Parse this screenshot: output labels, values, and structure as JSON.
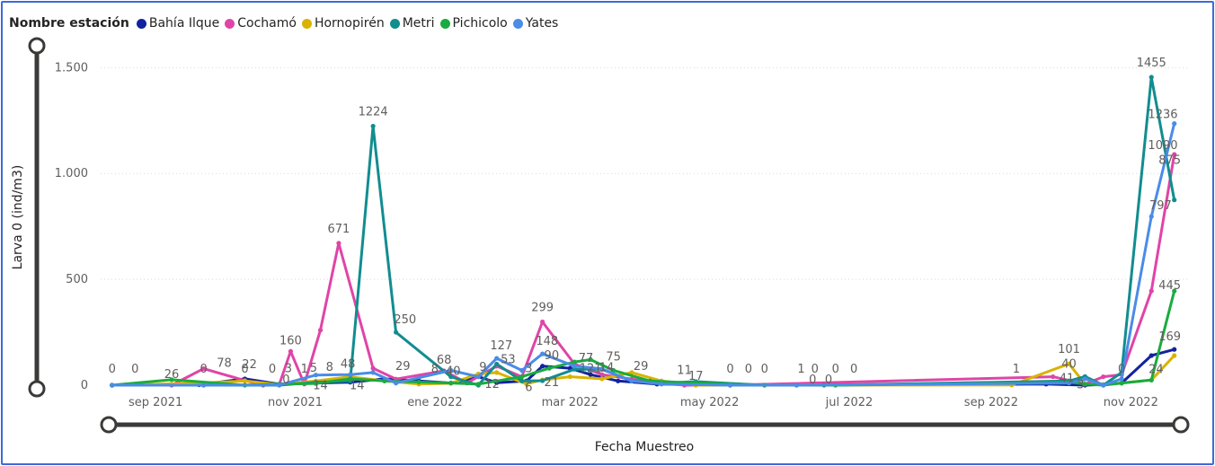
{
  "chart_data": {
    "type": "line",
    "legend_title": "Nombre estación",
    "xlabel": "Fecha Muestreo",
    "ylabel": "Larva 0 (ind/m3)",
    "ylim": [
      0,
      1650
    ],
    "x_range": [
      "2021-08-08",
      "2022-11-26"
    ],
    "y_ticks": [
      {
        "value": 0,
        "label": "0"
      },
      {
        "value": 500,
        "label": "500"
      },
      {
        "value": 1000,
        "label": "1.000"
      },
      {
        "value": 1500,
        "label": "1.500"
      }
    ],
    "x_ticks": [
      {
        "date": "2021-09-01",
        "label": "sep 2021"
      },
      {
        "date": "2021-11-01",
        "label": "nov 2021"
      },
      {
        "date": "2022-01-01",
        "label": "ene 2022"
      },
      {
        "date": "2022-03-01",
        "label": "mar 2022"
      },
      {
        "date": "2022-05-01",
        "label": "may 2022"
      },
      {
        "date": "2022-07-01",
        "label": "jul 2022"
      },
      {
        "date": "2022-09-01",
        "label": "sep 2022"
      },
      {
        "date": "2022-11-01",
        "label": "nov 2022"
      }
    ],
    "grid": true,
    "legend_position": "top-left",
    "series": [
      {
        "name": "Bahía Ilque",
        "color": "#12239e",
        "points": [
          [
            "2021-08-13",
            0
          ],
          [
            "2021-09-20",
            2
          ],
          [
            "2021-10-10",
            30
          ],
          [
            "2021-10-25",
            5
          ],
          [
            "2021-11-10",
            10
          ],
          [
            "2021-11-25",
            14
          ],
          [
            "2021-12-10",
            30
          ],
          [
            "2021-12-25",
            20
          ],
          [
            "2022-01-08",
            10
          ],
          [
            "2022-01-20",
            40
          ],
          [
            "2022-01-28",
            12
          ],
          [
            "2022-02-10",
            20
          ],
          [
            "2022-02-17",
            90
          ],
          [
            "2022-03-01",
            80
          ],
          [
            "2022-03-10",
            50
          ],
          [
            "2022-03-22",
            20
          ],
          [
            "2022-04-08",
            5
          ],
          [
            "2022-04-25",
            2
          ],
          [
            "2022-05-10",
            0
          ],
          [
            "2022-06-08",
            0
          ],
          [
            "2022-09-25",
            5
          ],
          [
            "2022-10-12",
            0
          ],
          [
            "2022-10-20",
            3
          ],
          [
            "2022-10-28",
            10
          ],
          [
            "2022-11-10",
            140
          ],
          [
            "2022-11-20",
            169
          ]
        ]
      },
      {
        "name": "Cochamó",
        "color": "#e044a7",
        "points": [
          [
            "2021-08-13",
            0
          ],
          [
            "2021-09-08",
            0
          ],
          [
            "2021-09-22",
            78
          ],
          [
            "2021-10-10",
            22
          ],
          [
            "2021-10-18",
            0
          ],
          [
            "2021-10-25",
            3
          ],
          [
            "2021-10-30",
            160
          ],
          [
            "2021-11-05",
            5
          ],
          [
            "2021-11-12",
            260
          ],
          [
            "2021-11-20",
            671
          ],
          [
            "2021-12-05",
            80
          ],
          [
            "2021-12-15",
            29
          ],
          [
            "2022-01-05",
            68
          ],
          [
            "2022-01-15",
            10
          ],
          [
            "2022-01-28",
            90
          ],
          [
            "2022-02-08",
            40
          ],
          [
            "2022-02-17",
            299
          ],
          [
            "2022-03-03",
            100
          ],
          [
            "2022-03-15",
            50
          ],
          [
            "2022-03-28",
            29
          ],
          [
            "2022-04-10",
            11
          ],
          [
            "2022-04-20",
            0
          ],
          [
            "2022-05-10",
            0
          ],
          [
            "2022-09-28",
            40
          ],
          [
            "2022-10-12",
            5
          ],
          [
            "2022-10-20",
            40
          ],
          [
            "2022-10-28",
            50
          ],
          [
            "2022-11-10",
            445
          ],
          [
            "2022-11-20",
            1090
          ]
        ]
      },
      {
        "name": "Hornopirén",
        "color": "#d9b300",
        "points": [
          [
            "2021-08-13",
            0
          ],
          [
            "2021-09-20",
            10
          ],
          [
            "2021-10-10",
            20
          ],
          [
            "2021-10-25",
            3
          ],
          [
            "2021-11-10",
            20
          ],
          [
            "2021-11-25",
            40
          ],
          [
            "2021-12-10",
            20
          ],
          [
            "2021-12-25",
            5
          ],
          [
            "2022-01-08",
            9
          ],
          [
            "2022-01-20",
            53
          ],
          [
            "2022-01-28",
            60
          ],
          [
            "2022-02-10",
            6
          ],
          [
            "2022-02-17",
            25
          ],
          [
            "2022-03-01",
            40
          ],
          [
            "2022-03-15",
            30
          ],
          [
            "2022-03-28",
            60
          ],
          [
            "2022-04-10",
            20
          ],
          [
            "2022-04-25",
            0
          ],
          [
            "2022-09-10",
            1
          ],
          [
            "2022-10-05",
            101
          ],
          [
            "2022-10-12",
            5
          ],
          [
            "2022-10-20",
            2
          ],
          [
            "2022-10-28",
            10
          ],
          [
            "2022-11-10",
            24
          ],
          [
            "2022-11-20",
            140
          ]
        ]
      },
      {
        "name": "Metri",
        "color": "#118d8f",
        "points": [
          [
            "2021-08-13",
            0
          ],
          [
            "2021-09-22",
            0
          ],
          [
            "2021-10-25",
            0
          ],
          [
            "2021-11-10",
            14
          ],
          [
            "2021-11-25",
            20
          ],
          [
            "2021-12-05",
            1224
          ],
          [
            "2021-12-15",
            250
          ],
          [
            "2022-01-08",
            40
          ],
          [
            "2022-01-20",
            0
          ],
          [
            "2022-01-28",
            100
          ],
          [
            "2022-02-08",
            20
          ],
          [
            "2022-02-17",
            21
          ],
          [
            "2022-03-03",
            75
          ],
          [
            "2022-03-15",
            75
          ],
          [
            "2022-03-28",
            20
          ],
          [
            "2022-04-10",
            10
          ],
          [
            "2022-04-25",
            17
          ],
          [
            "2022-05-25",
            0
          ],
          [
            "2022-06-20",
            0
          ],
          [
            "2022-10-05",
            20
          ],
          [
            "2022-10-12",
            41
          ],
          [
            "2022-10-20",
            0
          ],
          [
            "2022-10-28",
            60
          ],
          [
            "2022-11-10",
            1455
          ],
          [
            "2022-11-20",
            875
          ]
        ]
      },
      {
        "name": "Pichicolo",
        "color": "#1aab40",
        "points": [
          [
            "2021-08-13",
            0
          ],
          [
            "2021-09-08",
            26
          ],
          [
            "2021-10-10",
            0
          ],
          [
            "2021-10-25",
            5
          ],
          [
            "2021-11-10",
            8
          ],
          [
            "2021-11-25",
            30
          ],
          [
            "2021-12-10",
            20
          ],
          [
            "2021-12-25",
            15
          ],
          [
            "2022-01-08",
            10
          ],
          [
            "2022-01-20",
            5
          ],
          [
            "2022-02-08",
            40
          ],
          [
            "2022-02-20",
            80
          ],
          [
            "2022-03-03",
            110
          ],
          [
            "2022-03-10",
            121
          ],
          [
            "2022-03-20",
            70
          ],
          [
            "2022-04-05",
            20
          ],
          [
            "2022-04-25",
            10
          ],
          [
            "2022-05-25",
            0
          ],
          [
            "2022-06-25",
            0
          ],
          [
            "2022-10-05",
            15
          ],
          [
            "2022-10-12",
            5
          ],
          [
            "2022-10-20",
            0
          ],
          [
            "2022-10-28",
            10
          ],
          [
            "2022-11-10",
            24
          ],
          [
            "2022-11-20",
            445
          ]
        ]
      },
      {
        "name": "Yates",
        "color": "#4a8ce8",
        "points": [
          [
            "2021-08-13",
            0
          ],
          [
            "2021-09-22",
            0
          ],
          [
            "2021-10-25",
            1
          ],
          [
            "2021-11-10",
            48
          ],
          [
            "2021-11-25",
            50
          ],
          [
            "2021-12-05",
            60
          ],
          [
            "2021-12-15",
            10
          ],
          [
            "2022-01-08",
            70
          ],
          [
            "2022-01-20",
            40
          ],
          [
            "2022-01-28",
            127
          ],
          [
            "2022-02-08",
            70
          ],
          [
            "2022-02-17",
            148
          ],
          [
            "2022-03-03",
            90
          ],
          [
            "2022-03-15",
            77
          ],
          [
            "2022-03-28",
            20
          ],
          [
            "2022-04-10",
            5
          ],
          [
            "2022-05-10",
            0
          ],
          [
            "2022-06-08",
            0
          ],
          [
            "2022-10-05",
            10
          ],
          [
            "2022-10-12",
            30
          ],
          [
            "2022-10-20",
            0
          ],
          [
            "2022-10-28",
            30
          ],
          [
            "2022-11-10",
            797
          ],
          [
            "2022-11-20",
            1236
          ]
        ]
      }
    ],
    "data_labels": [
      {
        "date": "2021-08-13",
        "value": 0,
        "text": "0",
        "dy": -14
      },
      {
        "date": "2021-08-23",
        "value": 0,
        "text": "0",
        "dy": -14
      },
      {
        "date": "2021-09-08",
        "value": 26,
        "text": "26",
        "dy": -2
      },
      {
        "date": "2021-09-22",
        "value": 0,
        "text": "0",
        "dy": -14
      },
      {
        "date": "2021-10-01",
        "value": 78,
        "text": "78",
        "dy": -2
      },
      {
        "date": "2021-10-10",
        "value": 0,
        "text": "0",
        "dy": -14
      },
      {
        "date": "2021-10-12",
        "value": 22,
        "text": "22",
        "dy": -14
      },
      {
        "date": "2021-10-22",
        "value": 0,
        "text": "0",
        "dy": -14
      },
      {
        "date": "2021-10-28",
        "value": 0,
        "text": "0",
        "dy": -2
      },
      {
        "date": "2021-10-29",
        "value": 3,
        "text": "3",
        "dy": -14
      },
      {
        "date": "2021-11-05",
        "value": 1,
        "text": "1",
        "dy": -14
      },
      {
        "date": "2021-10-30",
        "value": 160,
        "text": "160",
        "dy": -8
      },
      {
        "date": "2021-11-09",
        "value": 5,
        "text": "5",
        "dy": -14
      },
      {
        "date": "2021-11-16",
        "value": 8,
        "text": "8",
        "dy": -14
      },
      {
        "date": "2021-11-20",
        "value": 671,
        "text": "671",
        "dy": -12
      },
      {
        "date": "2021-11-24",
        "value": 48,
        "text": "48",
        "dy": -8
      },
      {
        "date": "2021-11-12",
        "value": 14,
        "text": "14",
        "dy": 8
      },
      {
        "date": "2021-11-28",
        "value": 14,
        "text": "14",
        "dy": 8
      },
      {
        "date": "2021-12-05",
        "value": 1224,
        "text": "1224",
        "dy": -12
      },
      {
        "date": "2021-12-19",
        "value": 250,
        "text": "250",
        "dy": -10
      },
      {
        "date": "2021-12-18",
        "value": 29,
        "text": "29",
        "dy": -10
      },
      {
        "date": "2022-01-05",
        "value": 68,
        "text": "68",
        "dy": -8
      },
      {
        "date": "2022-01-01",
        "value": 8,
        "text": "8",
        "dy": -12
      },
      {
        "date": "2022-01-09",
        "value": 40,
        "text": "40",
        "dy": -2
      },
      {
        "date": "2022-01-22",
        "value": 9,
        "text": "9",
        "dy": -14
      },
      {
        "date": "2022-01-26",
        "value": 12,
        "text": "12",
        "dy": 6
      },
      {
        "date": "2022-02-02",
        "value": 53,
        "text": "53",
        "dy": -12
      },
      {
        "date": "2022-01-30",
        "value": 127,
        "text": "127",
        "dy": -10
      },
      {
        "date": "2022-02-11",
        "value": 3,
        "text": "3",
        "dy": -14
      },
      {
        "date": "2022-02-11",
        "value": 6,
        "text": "6",
        "dy": 8
      },
      {
        "date": "2022-02-19",
        "value": 148,
        "text": "148",
        "dy": -10
      },
      {
        "date": "2022-02-17",
        "value": 299,
        "text": "299",
        "dy": -12
      },
      {
        "date": "2022-02-21",
        "value": 90,
        "text": "90",
        "dy": -8
      },
      {
        "date": "2022-02-21",
        "value": 21,
        "text": "21",
        "dy": 6
      },
      {
        "date": "2022-03-08",
        "value": 77,
        "text": "77",
        "dy": -8
      },
      {
        "date": "2022-03-10",
        "value": 121,
        "text": "121",
        "dy": 14
      },
      {
        "date": "2022-03-17",
        "value": 14,
        "text": "14",
        "dy": -12
      },
      {
        "date": "2022-03-20",
        "value": 75,
        "text": "75",
        "dy": -10
      },
      {
        "date": "2022-04-01",
        "value": 29,
        "text": "29",
        "dy": -10
      },
      {
        "date": "2022-04-20",
        "value": 11,
        "text": "11",
        "dy": -10
      },
      {
        "date": "2022-04-25",
        "value": 17,
        "text": "17",
        "dy": -2
      },
      {
        "date": "2022-05-10",
        "value": 0,
        "text": "0",
        "dy": -14
      },
      {
        "date": "2022-05-18",
        "value": 0,
        "text": "0",
        "dy": -14
      },
      {
        "date": "2022-05-25",
        "value": 0,
        "text": "0",
        "dy": -14
      },
      {
        "date": "2022-06-10",
        "value": 1,
        "text": "1",
        "dy": -14
      },
      {
        "date": "2022-06-16",
        "value": 0,
        "text": "0",
        "dy": -14
      },
      {
        "date": "2022-06-25",
        "value": 0,
        "text": "0",
        "dy": -14
      },
      {
        "date": "2022-07-03",
        "value": 0,
        "text": "0",
        "dy": -14
      },
      {
        "date": "2022-06-22",
        "value": 0,
        "text": "0",
        "dy": -2
      },
      {
        "date": "2022-06-15",
        "value": 0,
        "text": "0",
        "dy": -2
      },
      {
        "date": "2022-09-12",
        "value": 1,
        "text": "1",
        "dy": -14
      },
      {
        "date": "2022-10-05",
        "value": 101,
        "text": "101",
        "dy": -12
      },
      {
        "date": "2022-10-05",
        "value": 40,
        "text": "40",
        "dy": -10
      },
      {
        "date": "2022-10-04",
        "value": 41,
        "text": "41",
        "dy": 6
      },
      {
        "date": "2022-10-10",
        "value": 3,
        "text": "3",
        "dy": 4
      },
      {
        "date": "2022-10-28",
        "value": 0,
        "text": "0",
        "dy": -14
      },
      {
        "date": "2022-11-10",
        "value": 1455,
        "text": "1455",
        "dy": -12
      },
      {
        "date": "2022-11-15",
        "value": 1236,
        "text": "1236",
        "dy": -6
      },
      {
        "date": "2022-11-15",
        "value": 1090,
        "text": "1090",
        "dy": -6
      },
      {
        "date": "2022-11-14",
        "value": 797,
        "text": "797",
        "dy": -8
      },
      {
        "date": "2022-11-18",
        "value": 875,
        "text": "875",
        "dy": -40
      },
      {
        "date": "2022-11-18",
        "value": 445,
        "text": "445",
        "dy": -2
      },
      {
        "date": "2022-11-18",
        "value": 169,
        "text": "169",
        "dy": -10
      },
      {
        "date": "2022-11-12",
        "value": 24,
        "text": "24",
        "dy": -8
      }
    ]
  }
}
